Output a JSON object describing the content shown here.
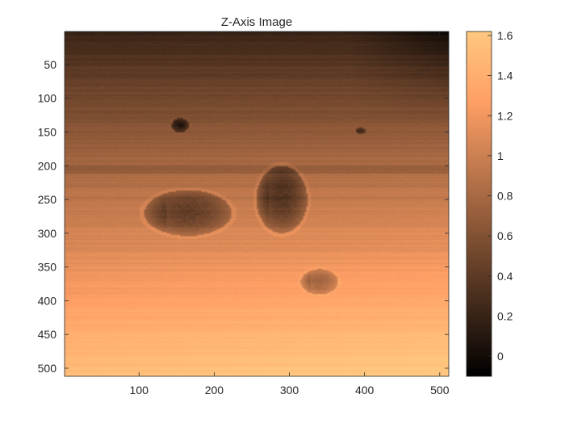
{
  "chart_data": {
    "type": "heatmap",
    "title": "Z-Axis Image",
    "xlabel": "",
    "ylabel": "",
    "xlim": [
      1,
      512
    ],
    "ylim": [
      1,
      512
    ],
    "y_reversed": true,
    "x_ticks": [
      100,
      200,
      300,
      400,
      500
    ],
    "y_ticks": [
      50,
      100,
      150,
      200,
      250,
      300,
      350,
      400,
      450,
      500
    ],
    "colorbar": {
      "colormap": "copper",
      "clim": [
        -0.1,
        1.62
      ],
      "ticks": [
        0,
        0.2,
        0.4,
        0.6,
        0.8,
        1,
        1.2,
        1.4,
        1.6
      ],
      "tick_labels": [
        "0",
        "0.2",
        "0.4",
        "0.6",
        "0.8",
        "1",
        "1.2",
        "1.4",
        "1.6"
      ]
    },
    "features": [
      {
        "label": "small particle",
        "center": [
          155,
          140
        ],
        "radii": [
          12,
          11
        ],
        "depth": 0.55
      },
      {
        "label": "small particle",
        "center": [
          395,
          148
        ],
        "radii": [
          7,
          5
        ],
        "depth": 0.45
      },
      {
        "label": "large oval",
        "center": [
          165,
          270
        ],
        "radii": [
          58,
          34
        ],
        "depth": 0.55
      },
      {
        "label": "tall oval",
        "center": [
          290,
          250
        ],
        "radii": [
          34,
          50
        ],
        "depth": 0.6
      },
      {
        "label": "small oval",
        "center": [
          340,
          372
        ],
        "radii": [
          25,
          19
        ],
        "depth": 0.5
      }
    ],
    "grid": false
  }
}
